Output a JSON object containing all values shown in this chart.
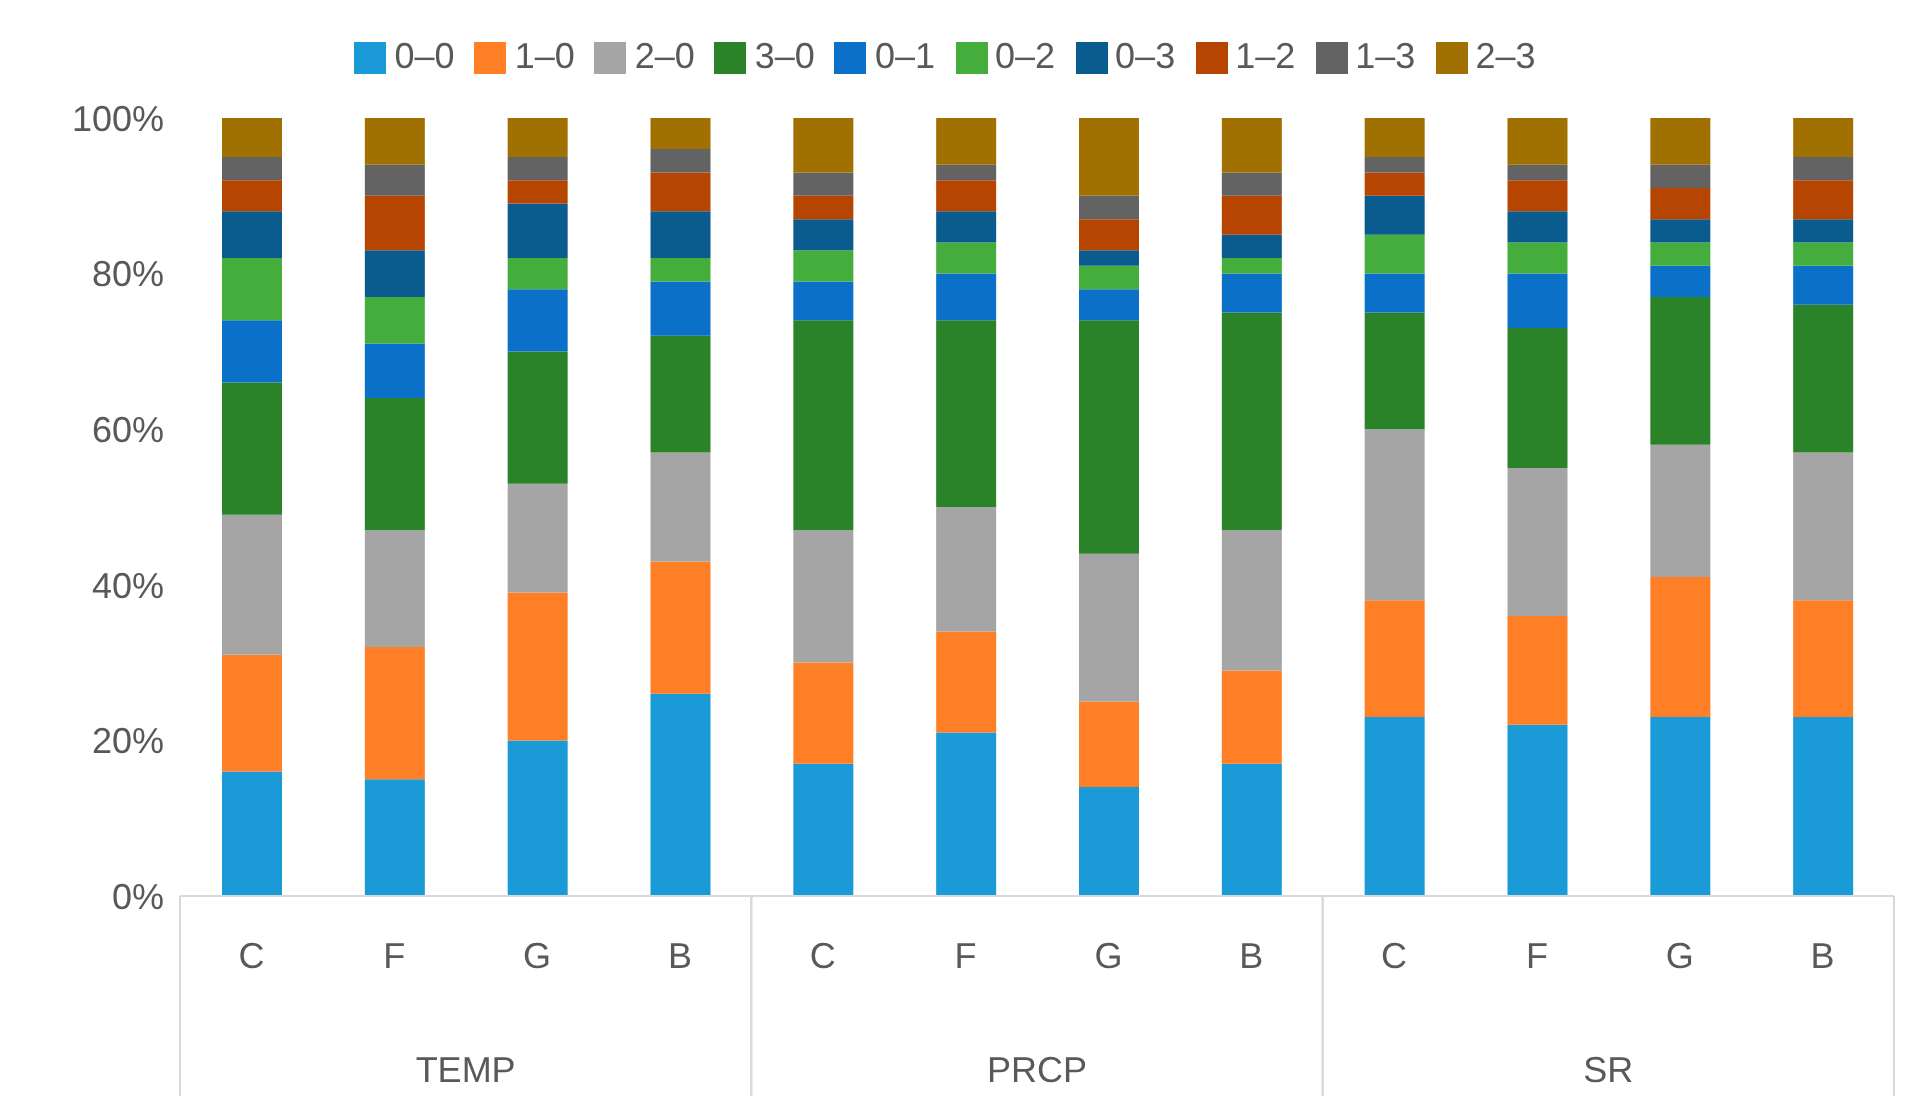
{
  "chart_data": {
    "type": "bar",
    "stacked": true,
    "categories": [
      "C",
      "F",
      "G",
      "B",
      "C",
      "F",
      "G",
      "B",
      "C",
      "F",
      "G",
      "B"
    ],
    "series": [
      {
        "name": "0–0",
        "color": "#1a9bd7",
        "values": [
          16,
          15,
          20,
          26,
          17,
          21,
          14,
          17,
          23,
          22,
          23,
          23
        ]
      },
      {
        "name": "1–0",
        "color": "#ff7f27",
        "values": [
          15,
          17,
          19,
          17,
          13,
          13,
          11,
          12,
          15,
          14,
          18,
          15
        ]
      },
      {
        "name": "2–0",
        "color": "#a5a5a5",
        "values": [
          18,
          15,
          14,
          14,
          17,
          16,
          19,
          18,
          22,
          19,
          17,
          19
        ]
      },
      {
        "name": "3–0",
        "color": "#2a8229",
        "values": [
          17,
          17,
          17,
          15,
          27,
          24,
          30,
          28,
          15,
          18,
          19,
          19
        ]
      },
      {
        "name": "0–1",
        "color": "#0a70c8",
        "values": [
          8,
          7,
          8,
          7,
          5,
          6,
          4,
          5,
          5,
          7,
          4,
          5
        ]
      },
      {
        "name": "0–2",
        "color": "#44ad3c",
        "values": [
          8,
          6,
          4,
          3,
          4,
          4,
          3,
          2,
          5,
          4,
          3,
          3
        ]
      },
      {
        "name": "0–3",
        "color": "#0a5c8e",
        "values": [
          6,
          6,
          7,
          6,
          4,
          4,
          2,
          3,
          5,
          4,
          3,
          3
        ]
      },
      {
        "name": "1–2",
        "color": "#b54500",
        "values": [
          4,
          7,
          3,
          5,
          3,
          4,
          4,
          5,
          3,
          4,
          4,
          5
        ]
      },
      {
        "name": "1–3",
        "color": "#636363",
        "values": [
          3,
          4,
          3,
          3,
          3,
          2,
          3,
          3,
          2,
          2,
          3,
          3
        ]
      },
      {
        "name": "2–3",
        "color": "#a07000",
        "values": [
          5,
          6,
          5,
          4,
          7,
          6,
          10,
          7,
          5,
          6,
          6,
          5
        ]
      }
    ],
    "ylim": [
      0,
      100
    ],
    "yticks": [
      {
        "value": 0,
        "label": "0%"
      },
      {
        "value": 20,
        "label": "20%"
      },
      {
        "value": 40,
        "label": "40%"
      },
      {
        "value": 60,
        "label": "60%"
      },
      {
        "value": 80,
        "label": "80%"
      },
      {
        "value": 100,
        "label": "100%"
      }
    ],
    "grid": false,
    "legend": "top",
    "annotations": [
      "TEMP",
      "PRCP",
      "SR"
    ]
  }
}
